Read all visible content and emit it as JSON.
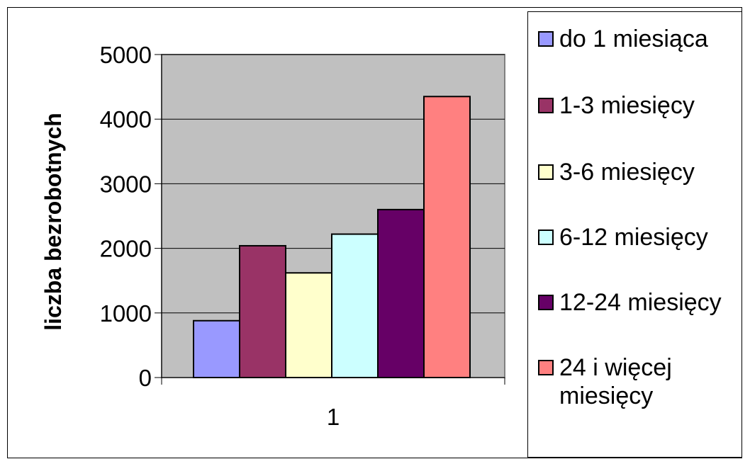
{
  "chart_data": {
    "type": "bar",
    "title": "",
    "xlabel": "",
    "ylabel": "liczba bezrobotnych",
    "categories": [
      "1"
    ],
    "ylim": [
      0,
      5000
    ],
    "yticks": [
      0,
      1000,
      2000,
      3000,
      4000,
      5000
    ],
    "grid": true,
    "legend_position": "right",
    "plot_background": "#c0c0c0",
    "series": [
      {
        "name": "do 1 miesiąca",
        "values": [
          880
        ],
        "color": "#9999ff"
      },
      {
        "name": "1-3 miesięcy",
        "values": [
          2040
        ],
        "color": "#993366"
      },
      {
        "name": "3-6 miesięcy",
        "values": [
          1620
        ],
        "color": "#ffffcc"
      },
      {
        "name": "6-12 miesięcy",
        "values": [
          2220
        ],
        "color": "#ccffff"
      },
      {
        "name": "12-24 miesięcy",
        "values": [
          2600
        ],
        "color": "#660066"
      },
      {
        "name": "24 i więcej miesięcy",
        "values": [
          4350
        ],
        "color": "#ff8080"
      }
    ]
  }
}
